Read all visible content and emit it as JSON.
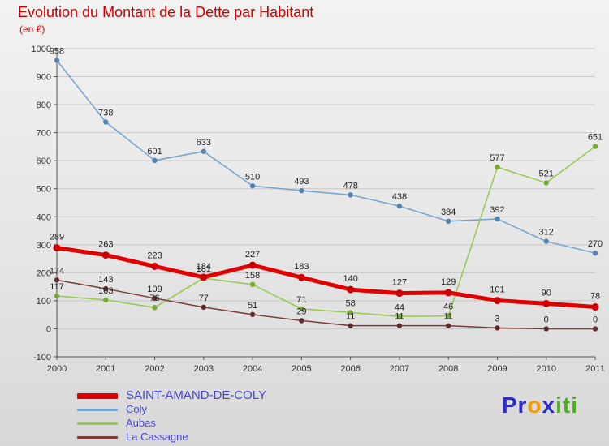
{
  "header": {
    "title": "Evolution du Montant de la Dette par Habitant",
    "subtitle": "(en €)",
    "title_color": "#cc0000"
  },
  "chart_data": {
    "type": "line",
    "x": [
      "2000",
      "2001",
      "2002",
      "2003",
      "2004",
      "2005",
      "2006",
      "2007",
      "2008",
      "2009",
      "2010",
      "2011"
    ],
    "ylim": [
      -100,
      1000
    ],
    "ytick_step": 100,
    "grid": true,
    "legend_position": "bottom-left",
    "series": [
      {
        "name": "SAINT-AMAND-DE-COLY",
        "color": "#e10000",
        "marker": "#cc0000",
        "width": 5,
        "values": [
          289,
          263,
          223,
          184,
          227,
          183,
          140,
          127,
          129,
          101,
          90,
          78
        ]
      },
      {
        "name": "Coly",
        "color": "#74a3d0",
        "marker": "#5585b5",
        "width": 1.5,
        "values": [
          958,
          738,
          601,
          633,
          510,
          493,
          478,
          438,
          384,
          392,
          312,
          270
        ]
      },
      {
        "name": "Aubas",
        "color": "#94c94a",
        "marker": "#74ac33",
        "width": 1.5,
        "values": [
          117,
          103,
          76,
          181,
          158,
          71,
          58,
          44,
          46,
          577,
          521,
          651
        ]
      },
      {
        "name": "La Cassagne",
        "color": "#7a3a3a",
        "marker": "#5f2d2d",
        "width": 1.5,
        "values": [
          174,
          143,
          109,
          77,
          51,
          29,
          11,
          11,
          11,
          3,
          0,
          0
        ]
      }
    ]
  },
  "logo": {
    "letters": [
      {
        "ch": "P",
        "color": "#2b2bd0"
      },
      {
        "ch": "r",
        "color": "#2b2bd0"
      },
      {
        "ch": "o",
        "color": "#f59b00"
      },
      {
        "ch": "x",
        "color": "#2b2bd0"
      },
      {
        "ch": "i",
        "color": "#4caf22"
      },
      {
        "ch": "t",
        "color": "#4caf22"
      },
      {
        "ch": "i",
        "color": "#4caf22"
      }
    ]
  }
}
